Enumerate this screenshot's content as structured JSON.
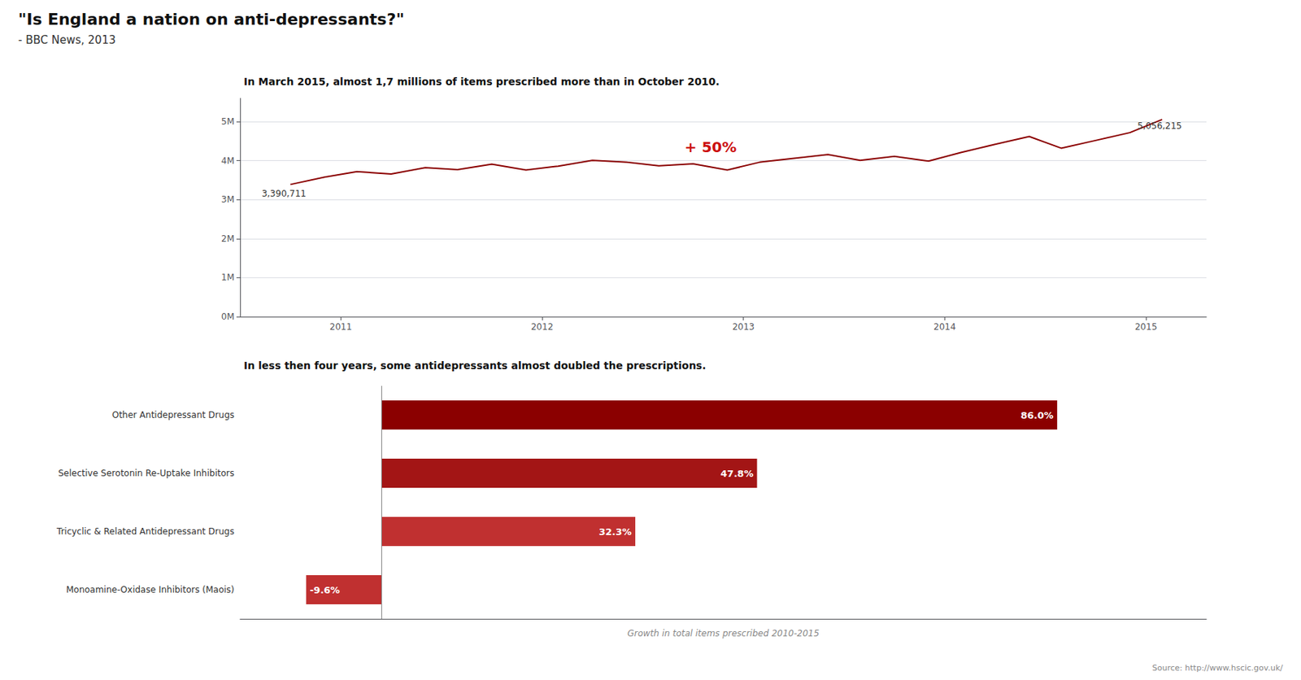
{
  "title": "\"Is England a nation on anti-depressants?\"",
  "subtitle": "- BBC News, 2013",
  "source": "Source: http://www.hscic.gov.uk/",
  "chart_data": [
    {
      "type": "line",
      "title": "In March 2015, almost 1,7 millions of items prescribed more than in October 2010.",
      "x": [
        2010.75,
        2010.92,
        2011.08,
        2011.25,
        2011.42,
        2011.58,
        2011.75,
        2011.92,
        2012.08,
        2012.25,
        2012.42,
        2012.58,
        2012.75,
        2012.92,
        2013.08,
        2013.25,
        2013.42,
        2013.58,
        2013.75,
        2013.92,
        2014.08,
        2014.25,
        2014.42,
        2014.58,
        2014.75,
        2014.92,
        2015.08
      ],
      "values": [
        3390711,
        3580000,
        3720000,
        3660000,
        3820000,
        3770000,
        3910000,
        3760000,
        3860000,
        4010000,
        3960000,
        3870000,
        3920000,
        3760000,
        3960000,
        4060000,
        4160000,
        4010000,
        4110000,
        3990000,
        4210000,
        4420000,
        4620000,
        4320000,
        4520000,
        4720000,
        5056215
      ],
      "color": "#8b0000",
      "xlim": [
        2010.5,
        2015.3
      ],
      "xticks": [
        2011,
        2012,
        2013,
        2014,
        2015
      ],
      "ylim": [
        0,
        5600000
      ],
      "yticks": [
        {
          "value": 0,
          "label": "0M"
        },
        {
          "value": 1000000,
          "label": "1M"
        },
        {
          "value": 2000000,
          "label": "2M"
        },
        {
          "value": 3000000,
          "label": "3M"
        },
        {
          "value": 4000000,
          "label": "4M"
        },
        {
          "value": 5000000,
          "label": "5M"
        }
      ],
      "grid": true,
      "annotations": [
        {
          "text": "3,390,711",
          "x": 2010.6,
          "y": 3150000
        },
        {
          "text": "5,056,215",
          "x": 2014.95,
          "y": 4900000
        },
        {
          "text": "+ 50%",
          "x": 2012.7,
          "y": 4350000,
          "color": "#cc1111"
        }
      ]
    },
    {
      "type": "bar",
      "orientation": "horizontal",
      "title": "In less then four years, some antidepressants almost doubled the prescriptions.",
      "xlabel": "Growth in total items prescribed 2010-2015",
      "categories": [
        "Other Antidepressant Drugs",
        "Selective Serotonin Re-Uptake Inhibitors",
        "Tricyclic & Related Antidepressant Drugs",
        "Monoamine-Oxidase Inhibitors (Maois)"
      ],
      "values": [
        86.0,
        47.8,
        32.3,
        -9.6
      ],
      "value_labels": [
        "86.0%",
        "47.8%",
        "32.3%",
        "-9.6%"
      ],
      "colors": [
        "#8b0000",
        "#a31515",
        "#c03030",
        "#c03030"
      ],
      "data_labels": true,
      "xlim": [
        -18,
        105
      ],
      "tick_labels": "y",
      "grid": false
    }
  ]
}
